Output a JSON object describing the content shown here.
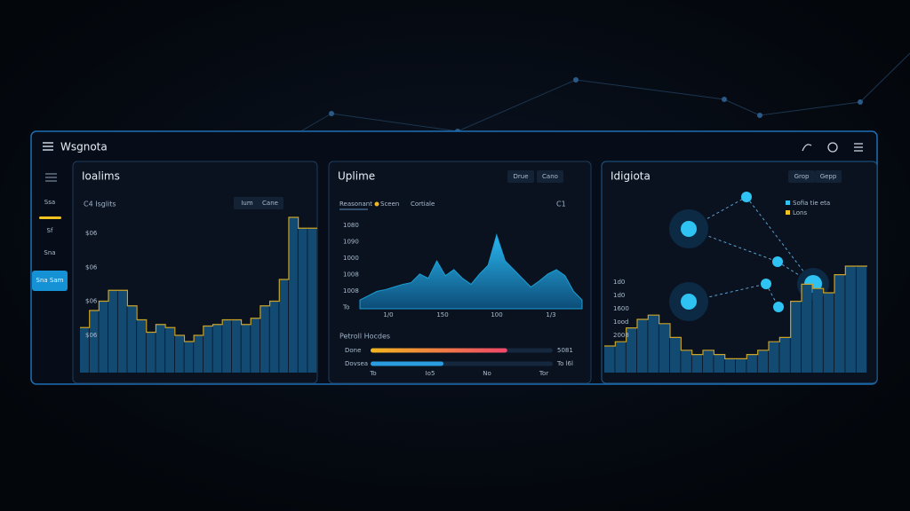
{
  "header": {
    "title": "Wsgnota"
  },
  "sidebar": {
    "items": [
      "Ssa",
      "Sf",
      "Sna",
      "Sna Sam"
    ]
  },
  "panels": [
    {
      "title": "Ioalims",
      "subtitle": "C4 Isglits",
      "buttons": [
        "Ium",
        "Cane"
      ],
      "ylabels": [
        "$06",
        "$06",
        "$06",
        "$06"
      ],
      "chart": {
        "type": "bar",
        "ylim": [
          0,
          100
        ],
        "color": "#134a72",
        "line": "#c9a227",
        "values": [
          29,
          40,
          46,
          53,
          53,
          43,
          34,
          26,
          31,
          29,
          24,
          20,
          24,
          30,
          31,
          34,
          34,
          31,
          35,
          43,
          46,
          60,
          100,
          93,
          93
        ]
      }
    },
    {
      "title": "Uplime",
      "buttons": [
        "Drue",
        "Cano"
      ],
      "tabs": [
        "Reasonant",
        "Sceen",
        "Cortiale"
      ],
      "corner": "C1",
      "ylabels": [
        "1080",
        "1090",
        "1000",
        "1008",
        "1008",
        "To"
      ],
      "xlabels": [
        "1/0",
        "150",
        "100",
        "1/3"
      ],
      "chart": {
        "type": "area",
        "ylim": [
          0,
          100
        ],
        "color": "#1b9fd6",
        "values": [
          10,
          15,
          20,
          22,
          25,
          28,
          30,
          40,
          35,
          55,
          38,
          45,
          35,
          28,
          40,
          50,
          85,
          55,
          45,
          35,
          25,
          32,
          40,
          45,
          38,
          20,
          10
        ]
      },
      "section": "Petroll Hocdes",
      "progress": {
        "xlim": [
          0,
          100
        ],
        "rows": [
          {
            "label": "Done",
            "value": 75,
            "right": "5081"
          },
          {
            "label": "Dovsea",
            "value": 40,
            "right": "To l6l"
          }
        ],
        "scale": [
          "To",
          "Io5",
          "No",
          "Tor"
        ]
      }
    },
    {
      "title": "Idigiota",
      "buttons": [
        "Grop",
        "Gepp"
      ],
      "legend": [
        "Sofia tie eta",
        "Lons"
      ],
      "ylabels": [
        "1d0",
        "1d0",
        "1600",
        "1ood",
        "2008"
      ],
      "chart": {
        "type": "bar",
        "ylim": [
          0,
          100
        ],
        "color": "#134a72",
        "line": "#c9a227",
        "values": [
          25,
          29,
          42,
          50,
          54,
          46,
          33,
          21,
          17,
          21,
          17,
          13,
          13,
          17,
          21,
          29,
          33,
          67,
          83,
          79,
          75,
          92,
          100,
          100
        ]
      }
    }
  ]
}
